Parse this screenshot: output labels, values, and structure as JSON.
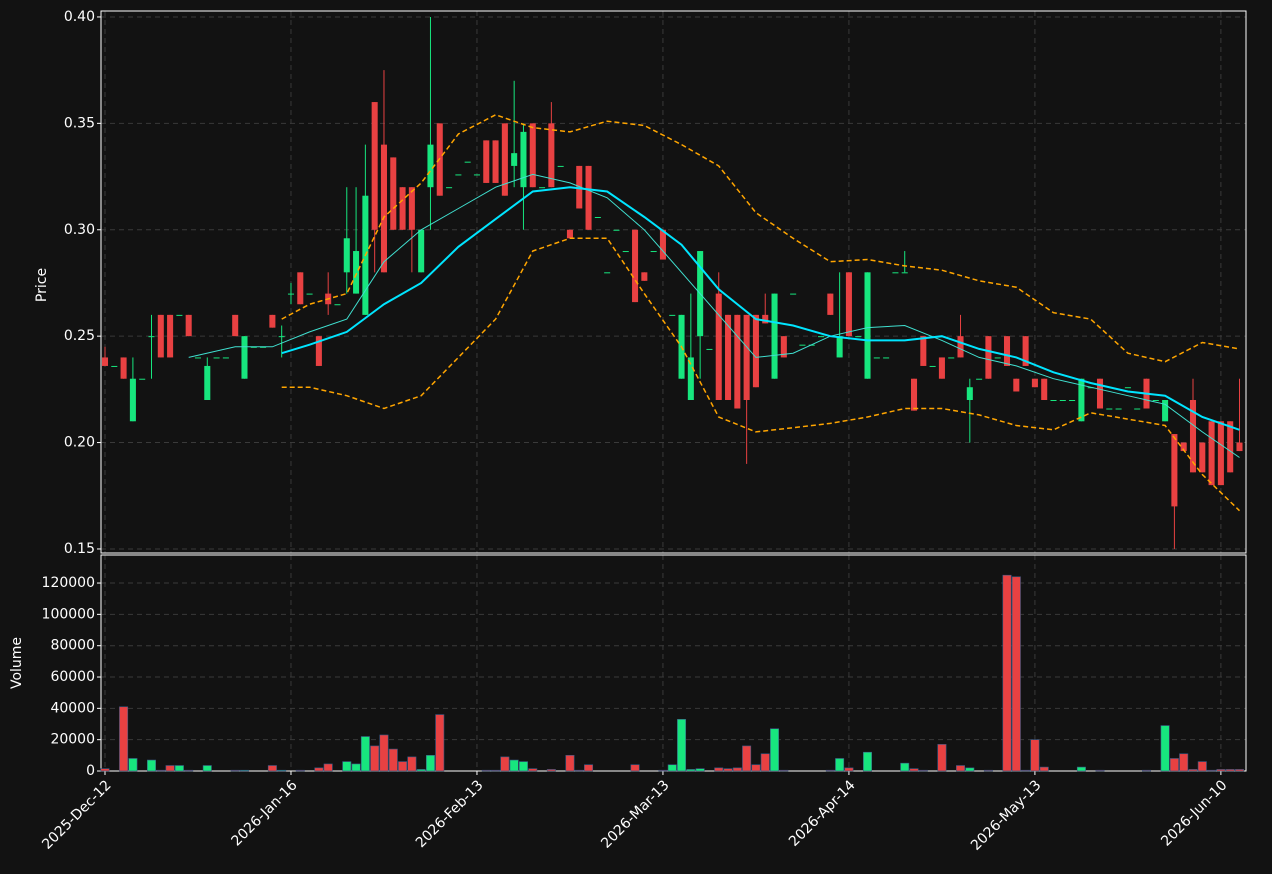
{
  "chart_data": [
    {
      "type": "candlestick",
      "ylabel": "Price",
      "grid": true,
      "up_color": "#17e67e",
      "down_color": "#e84142",
      "xlim": [
        -0.43,
        122.7
      ],
      "ylim": [
        0.1481,
        0.4028
      ],
      "yticks": [
        {
          "value": 0.15,
          "label": "0.15"
        },
        {
          "value": 0.2,
          "label": "0.20"
        },
        {
          "value": 0.25,
          "label": "0.25"
        },
        {
          "value": 0.3,
          "label": "0.30"
        },
        {
          "value": 0.35,
          "label": "0.35"
        },
        {
          "value": 0.4,
          "label": "0.40"
        }
      ],
      "categories": [
        "2025-Dec-12",
        null,
        null,
        null,
        null,
        null,
        null,
        null,
        null,
        null,
        null,
        null,
        null,
        null,
        null,
        null,
        null,
        null,
        null,
        null,
        "2026-Jan-16",
        null,
        null,
        null,
        null,
        null,
        null,
        null,
        null,
        null,
        null,
        null,
        null,
        null,
        null,
        null,
        null,
        null,
        null,
        null,
        "2026-Feb-13",
        null,
        null,
        null,
        null,
        null,
        null,
        null,
        null,
        null,
        null,
        null,
        null,
        null,
        null,
        null,
        null,
        null,
        null,
        null,
        "2026-Mar-13",
        null,
        null,
        null,
        null,
        null,
        null,
        null,
        null,
        null,
        null,
        null,
        null,
        null,
        null,
        null,
        null,
        null,
        null,
        null,
        "2026-Apr-14",
        null,
        null,
        null,
        null,
        null,
        null,
        null,
        null,
        null,
        null,
        null,
        null,
        null,
        null,
        null,
        null,
        null,
        null,
        null,
        "2026-May-13",
        null,
        null,
        null,
        null,
        null,
        null,
        null,
        null,
        null,
        null,
        null,
        null,
        null,
        null,
        null,
        null,
        null,
        null,
        null,
        "2026-Jun-10",
        null,
        null
      ],
      "open": [
        0.24,
        0.236,
        0.24,
        0.21,
        0.23,
        0.25,
        0.26,
        0.26,
        0.26,
        0.26,
        0.24,
        0.22,
        0.24,
        0.24,
        0.26,
        0.23,
        0.245,
        0.245,
        0.26,
        0.25,
        0.27,
        0.28,
        0.27,
        0.25,
        0.27,
        0.265,
        0.28,
        0.27,
        0.26,
        0.36,
        0.34,
        0.334,
        0.32,
        0.32,
        0.28,
        0.32,
        0.35,
        0.32,
        0.326,
        0.332,
        0.326,
        0.342,
        0.342,
        0.35,
        0.33,
        0.32,
        0.35,
        0.32,
        0.35,
        0.33,
        0.3,
        0.33,
        0.33,
        0.306,
        0.28,
        0.3,
        0.29,
        0.3,
        0.28,
        0.29,
        0.3,
        0.26,
        0.23,
        0.22,
        0.25,
        0.244,
        0.27,
        0.26,
        0.26,
        0.26,
        0.26,
        0.26,
        0.23,
        0.25,
        0.27,
        0.246,
        0.246,
        0.25,
        0.27,
        0.24,
        0.28,
        0.25,
        0.23,
        0.24,
        0.24,
        0.28,
        0.28,
        0.23,
        0.25,
        0.236,
        0.24,
        0.24,
        0.25,
        0.22,
        0.23,
        0.25,
        0.24,
        0.25,
        0.23,
        0.25,
        0.23,
        0.23,
        0.22,
        0.22,
        0.22,
        0.21,
        0.226,
        0.23,
        0.216,
        0.216,
        0.226,
        0.216,
        0.23,
        0.22,
        0.21,
        0.204,
        0.2,
        0.22,
        0.2,
        0.21,
        0.21,
        0.21,
        0.2
      ],
      "high": [
        0.245,
        0.236,
        0.24,
        0.24,
        0.23,
        0.26,
        0.26,
        0.26,
        0.26,
        0.26,
        0.24,
        0.24,
        0.24,
        0.24,
        0.26,
        0.25,
        0.245,
        0.245,
        0.26,
        0.255,
        0.275,
        0.28,
        0.27,
        0.25,
        0.28,
        0.265,
        0.32,
        0.32,
        0.34,
        0.36,
        0.375,
        0.334,
        0.32,
        0.32,
        0.3,
        0.4,
        0.35,
        0.32,
        0.326,
        0.332,
        0.326,
        0.342,
        0.342,
        0.35,
        0.37,
        0.35,
        0.35,
        0.32,
        0.36,
        0.33,
        0.3,
        0.33,
        0.33,
        0.306,
        0.28,
        0.3,
        0.29,
        0.3,
        0.28,
        0.29,
        0.3,
        0.26,
        0.26,
        0.27,
        0.29,
        0.244,
        0.28,
        0.26,
        0.26,
        0.26,
        0.26,
        0.27,
        0.27,
        0.25,
        0.27,
        0.246,
        0.246,
        0.25,
        0.27,
        0.28,
        0.28,
        0.25,
        0.28,
        0.24,
        0.24,
        0.28,
        0.29,
        0.23,
        0.25,
        0.236,
        0.24,
        0.24,
        0.26,
        0.23,
        0.23,
        0.25,
        0.24,
        0.25,
        0.23,
        0.25,
        0.23,
        0.23,
        0.22,
        0.22,
        0.22,
        0.23,
        0.226,
        0.23,
        0.216,
        0.216,
        0.226,
        0.216,
        0.23,
        0.22,
        0.22,
        0.204,
        0.2,
        0.23,
        0.2,
        0.21,
        0.21,
        0.21,
        0.23
      ],
      "low": [
        0.236,
        0.236,
        0.23,
        0.21,
        0.23,
        0.23,
        0.24,
        0.24,
        0.26,
        0.25,
        0.24,
        0.22,
        0.24,
        0.24,
        0.25,
        0.23,
        0.245,
        0.245,
        0.254,
        0.24,
        0.265,
        0.265,
        0.27,
        0.236,
        0.26,
        0.265,
        0.27,
        0.27,
        0.26,
        0.28,
        0.28,
        0.3,
        0.3,
        0.28,
        0.28,
        0.3,
        0.316,
        0.32,
        0.326,
        0.332,
        0.326,
        0.322,
        0.322,
        0.316,
        0.32,
        0.3,
        0.32,
        0.32,
        0.32,
        0.33,
        0.296,
        0.31,
        0.3,
        0.306,
        0.28,
        0.3,
        0.29,
        0.266,
        0.276,
        0.29,
        0.286,
        0.26,
        0.23,
        0.22,
        0.23,
        0.244,
        0.22,
        0.22,
        0.216,
        0.19,
        0.226,
        0.256,
        0.23,
        0.24,
        0.27,
        0.246,
        0.246,
        0.25,
        0.26,
        0.24,
        0.25,
        0.25,
        0.23,
        0.24,
        0.24,
        0.28,
        0.28,
        0.215,
        0.236,
        0.236,
        0.23,
        0.24,
        0.24,
        0.2,
        0.23,
        0.23,
        0.24,
        0.236,
        0.224,
        0.236,
        0.226,
        0.22,
        0.22,
        0.22,
        0.22,
        0.21,
        0.226,
        0.216,
        0.216,
        0.216,
        0.226,
        0.216,
        0.216,
        0.22,
        0.21,
        0.15,
        0.196,
        0.186,
        0.186,
        0.18,
        0.18,
        0.186,
        0.196
      ],
      "close": [
        0.236,
        0.236,
        0.23,
        0.23,
        0.23,
        0.25,
        0.24,
        0.24,
        0.26,
        0.25,
        0.24,
        0.236,
        0.24,
        0.24,
        0.25,
        0.25,
        0.245,
        0.245,
        0.254,
        0.25,
        0.27,
        0.265,
        0.27,
        0.236,
        0.265,
        0.265,
        0.296,
        0.29,
        0.316,
        0.3,
        0.28,
        0.3,
        0.3,
        0.3,
        0.3,
        0.34,
        0.316,
        0.32,
        0.326,
        0.332,
        0.326,
        0.322,
        0.322,
        0.316,
        0.336,
        0.346,
        0.32,
        0.32,
        0.32,
        0.33,
        0.296,
        0.31,
        0.3,
        0.306,
        0.28,
        0.3,
        0.29,
        0.266,
        0.276,
        0.29,
        0.286,
        0.26,
        0.26,
        0.24,
        0.29,
        0.244,
        0.22,
        0.22,
        0.216,
        0.22,
        0.226,
        0.256,
        0.27,
        0.24,
        0.27,
        0.246,
        0.246,
        0.25,
        0.26,
        0.25,
        0.25,
        0.25,
        0.28,
        0.24,
        0.24,
        0.28,
        0.28,
        0.215,
        0.236,
        0.236,
        0.23,
        0.24,
        0.24,
        0.226,
        0.23,
        0.23,
        0.24,
        0.236,
        0.224,
        0.236,
        0.226,
        0.22,
        0.22,
        0.22,
        0.22,
        0.23,
        0.226,
        0.216,
        0.216,
        0.216,
        0.226,
        0.216,
        0.216,
        0.22,
        0.22,
        0.17,
        0.196,
        0.186,
        0.186,
        0.18,
        0.18,
        0.186,
        0.196
      ],
      "lines": [
        {
          "color": "#40e0d0",
          "width": 1,
          "dashed": false,
          "x": [
            9,
            14,
            18,
            22,
            26,
            30,
            34,
            38,
            42,
            46,
            50,
            54,
            58,
            62,
            66,
            70,
            74,
            78,
            82,
            86,
            90,
            94,
            98,
            102,
            106,
            110,
            114,
            118,
            122
          ],
          "values": [
            0.24,
            0.245,
            0.245,
            0.252,
            0.258,
            0.285,
            0.3,
            0.31,
            0.32,
            0.326,
            0.322,
            0.315,
            0.3,
            0.28,
            0.26,
            0.24,
            0.242,
            0.25,
            0.254,
            0.255,
            0.248,
            0.24,
            0.236,
            0.23,
            0.226,
            0.222,
            0.218,
            0.205,
            0.193
          ]
        },
        {
          "color": "#00e5ff",
          "width": 2,
          "dashed": false,
          "x": [
            19,
            22,
            26,
            30,
            34,
            38,
            42,
            46,
            50,
            54,
            58,
            62,
            66,
            70,
            74,
            78,
            82,
            86,
            90,
            94,
            98,
            102,
            106,
            110,
            114,
            118,
            122
          ],
          "values": [
            0.242,
            0.246,
            0.252,
            0.265,
            0.275,
            0.292,
            0.305,
            0.318,
            0.32,
            0.318,
            0.306,
            0.293,
            0.272,
            0.258,
            0.255,
            0.25,
            0.248,
            0.248,
            0.25,
            0.244,
            0.24,
            0.233,
            0.228,
            0.224,
            0.222,
            0.212,
            0.206
          ]
        },
        {
          "color": "#ffa500",
          "width": 1.5,
          "dashed": true,
          "x": [
            19,
            22,
            26,
            30,
            34,
            38,
            42,
            46,
            50,
            54,
            58,
            62,
            66,
            70,
            74,
            78,
            82,
            86,
            90,
            94,
            98,
            102,
            106,
            110,
            114,
            118,
            122
          ],
          "values": [
            0.258,
            0.265,
            0.27,
            0.306,
            0.322,
            0.345,
            0.354,
            0.348,
            0.346,
            0.351,
            0.349,
            0.34,
            0.33,
            0.308,
            0.296,
            0.285,
            0.286,
            0.283,
            0.281,
            0.276,
            0.273,
            0.261,
            0.258,
            0.242,
            0.238,
            0.247,
            0.244
          ]
        },
        {
          "color": "#ffa500",
          "width": 1.5,
          "dashed": true,
          "x": [
            19,
            22,
            26,
            30,
            34,
            38,
            42,
            46,
            50,
            54,
            58,
            62,
            66,
            70,
            74,
            78,
            82,
            86,
            90,
            94,
            98,
            102,
            106,
            110,
            114,
            118,
            122
          ],
          "values": [
            0.226,
            0.226,
            0.222,
            0.216,
            0.222,
            0.24,
            0.258,
            0.29,
            0.296,
            0.296,
            0.27,
            0.245,
            0.212,
            0.205,
            0.207,
            0.209,
            0.212,
            0.216,
            0.216,
            0.213,
            0.208,
            0.206,
            0.214,
            0.211,
            0.208,
            0.185,
            0.168
          ]
        }
      ]
    },
    {
      "type": "bar",
      "ylabel": "Volume",
      "grid": true,
      "ylim": [
        0,
        137900
      ],
      "yticks": [
        0,
        20000,
        40000,
        60000,
        80000,
        100000,
        120000
      ],
      "values": [
        1500,
        0,
        41000,
        8000,
        0,
        7000,
        500,
        3500,
        3500,
        500,
        0,
        3500,
        0,
        0,
        500,
        500,
        0,
        0,
        3500,
        500,
        0,
        500,
        0,
        2000,
        4500,
        0,
        6000,
        4500,
        22000,
        16000,
        23000,
        14000,
        6000,
        9000,
        1000,
        10000,
        36000,
        0,
        0,
        0,
        0,
        500,
        500,
        9000,
        7000,
        6000,
        1500,
        0,
        1000,
        0,
        10000,
        500,
        4000,
        0,
        0,
        0,
        0,
        4000,
        0,
        0,
        500,
        4000,
        33000,
        1000,
        1500,
        0,
        2000,
        1500,
        2000,
        16000,
        4000,
        11000,
        27000,
        500,
        0,
        0,
        0,
        0,
        500,
        8000,
        2000,
        0,
        12000,
        0,
        0,
        0,
        5000,
        1500,
        500,
        0,
        17000,
        0,
        3500,
        2000,
        0,
        500,
        0,
        125000,
        124000,
        500,
        20000,
        2500,
        0,
        0,
        0,
        2500,
        0,
        500,
        0,
        0,
        0,
        0,
        500,
        0,
        29000,
        8000,
        11000,
        1000,
        6000,
        500,
        1000,
        1000,
        1000
      ]
    }
  ]
}
